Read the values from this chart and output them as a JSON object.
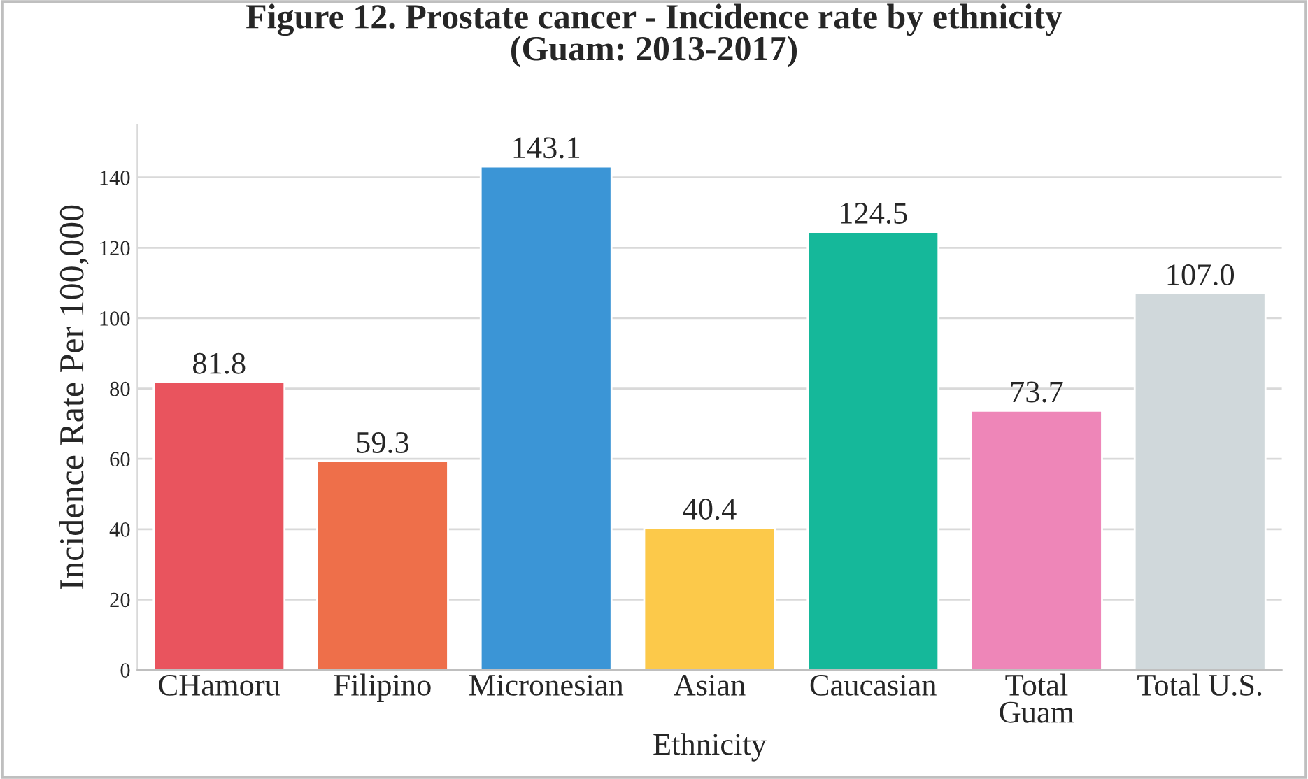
{
  "chart_data": {
    "type": "bar",
    "title": "Figure 12. Prostate cancer - Incidence rate by ethnicity\n(Guam: 2013-2017)",
    "xlabel": "Ethnicity",
    "ylabel": "Incidence Rate Per 100,000",
    "categories": [
      "CHamoru",
      "Filipino",
      "Micronesian",
      "Asian",
      "Caucasian",
      "Total\nGuam",
      "Total U.S."
    ],
    "values": [
      81.8,
      59.3,
      143.1,
      40.4,
      124.5,
      73.7,
      107.0
    ],
    "value_labels": [
      "81.8",
      "59.3",
      "143.1",
      "40.4",
      "124.5",
      "73.7",
      "107.0"
    ],
    "colors": [
      "#e9545e",
      "#ee6f4a",
      "#3b95d6",
      "#fcc94a",
      "#15b89a",
      "#ee86b8",
      "#d0d8db"
    ],
    "ylim": [
      0,
      155
    ],
    "yticks": [
      0,
      20,
      40,
      60,
      80,
      100,
      120,
      140
    ],
    "grid": "y",
    "legend": false
  }
}
